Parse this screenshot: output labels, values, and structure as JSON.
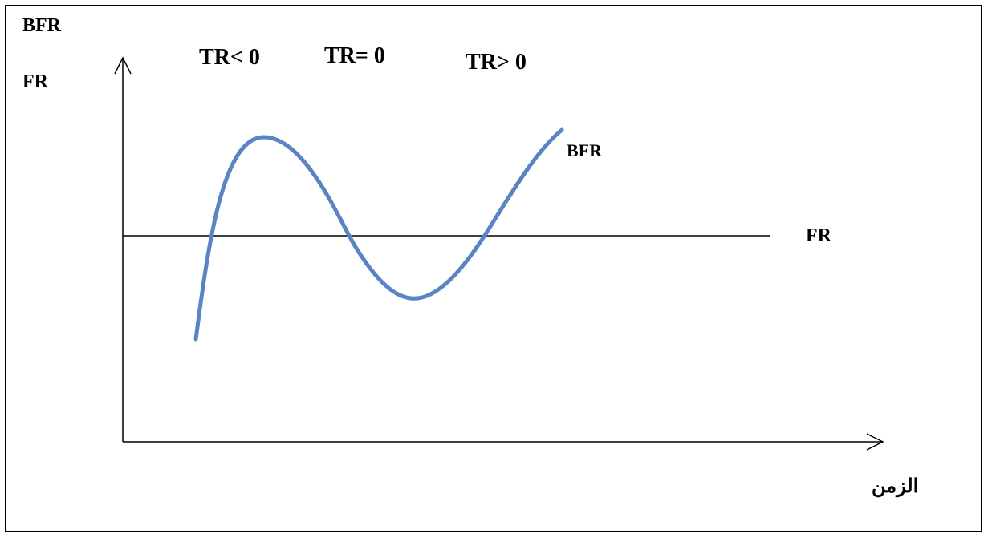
{
  "diagram": {
    "y_axis_labels": [
      "BFR",
      "FR"
    ],
    "x_axis_label": "الزمن",
    "zones": [
      "TR< 0",
      "TR= 0",
      "TR> 0"
    ],
    "curve_label": "BFR",
    "line_label": "FR",
    "colors": {
      "curve": "#5b84c4",
      "axes": "#000000",
      "fr_line": "#000000"
    }
  }
}
